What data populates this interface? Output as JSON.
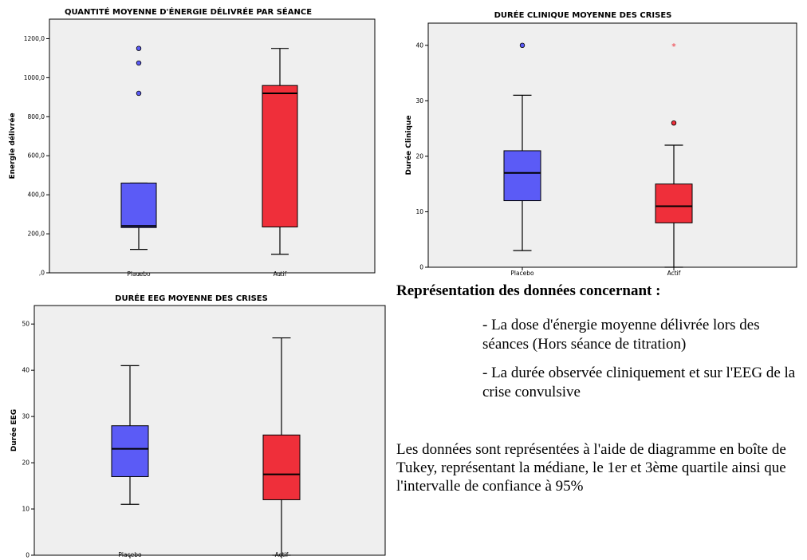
{
  "chart_data": [
    {
      "type": "boxplot",
      "title": "QUANTITÉ MOYENNE D'ÉNERGIE DÉLIVRÉE PAR SÉANCE",
      "ylabel": "Energie délivrée",
      "xlabel": "",
      "ylim": [
        0,
        1300
      ],
      "yticks": [
        0,
        200,
        400,
        600,
        800,
        1000,
        1200
      ],
      "ytick_labels": [
        ",0",
        "200,0",
        "400,0",
        "600,0",
        "800,0",
        "1000,0",
        "1200,0"
      ],
      "categories": [
        "Placebo",
        "Actif"
      ],
      "boxes": [
        {
          "category": "Placebo",
          "whisker_low": 120,
          "q1": 232,
          "median": 240,
          "q3": 460,
          "whisker_high": 460,
          "color": "#5b5bf6",
          "outliers": [
            {
              "value": 920,
              "marker": "circle"
            },
            {
              "value": 1075,
              "marker": "circle"
            },
            {
              "value": 1150,
              "marker": "circle"
            }
          ]
        },
        {
          "category": "Actif",
          "whisker_low": 95,
          "q1": 235,
          "median": 920,
          "q3": 960,
          "whisker_high": 1150,
          "color": "#ef2f3a",
          "outliers": []
        }
      ]
    },
    {
      "type": "boxplot",
      "title": "DURÉE CLINIQUE MOYENNE DES CRISES",
      "ylabel": "Durée Clinique",
      "xlabel": "",
      "ylim": [
        0,
        44
      ],
      "yticks": [
        0,
        10,
        20,
        30,
        40
      ],
      "ytick_labels": [
        "0",
        "10",
        "20",
        "30",
        "40"
      ],
      "categories": [
        "Placebo",
        "Actif"
      ],
      "boxes": [
        {
          "category": "Placebo",
          "whisker_low": 3,
          "q1": 12,
          "median": 17,
          "q3": 21,
          "whisker_high": 31,
          "color": "#5b5bf6",
          "outliers": [
            {
              "value": 40,
              "marker": "circle"
            }
          ]
        },
        {
          "category": "Actif",
          "whisker_low": 0,
          "q1": 8,
          "median": 11,
          "q3": 15,
          "whisker_high": 22,
          "color": "#ef2f3a",
          "outliers": [
            {
              "value": 26,
              "marker": "circle"
            },
            {
              "value": 40,
              "marker": "star"
            }
          ]
        }
      ]
    },
    {
      "type": "boxplot",
      "title": "DURÉE EEG MOYENNE DES CRISES",
      "ylabel": "Durée EEG",
      "xlabel": "",
      "ylim": [
        0,
        54
      ],
      "yticks": [
        0,
        10,
        20,
        30,
        40,
        50
      ],
      "ytick_labels": [
        "0",
        "10",
        "20",
        "30",
        "40",
        "50"
      ],
      "categories": [
        "Placebo",
        "Actif"
      ],
      "boxes": [
        {
          "category": "Placebo",
          "whisker_low": 11,
          "q1": 17,
          "median": 23,
          "q3": 28,
          "whisker_high": 41,
          "color": "#5b5bf6",
          "outliers": []
        },
        {
          "category": "Actif",
          "whisker_low": 0,
          "q1": 12,
          "median": 17.5,
          "q3": 26,
          "whisker_high": 47,
          "color": "#ef2f3a",
          "outliers": []
        }
      ]
    }
  ],
  "side_text": {
    "heading": "Représentation des données concernant :",
    "bullet_1": "- La dose d'énergie moyenne délivrée lors des séances (Hors séance de titration)",
    "bullet_2": "- La durée observée cliniquement et sur l'EEG de la crise convulsive",
    "paragraph": "Les données sont représentées à l'aide de diagramme en boîte de Tukey, représentant la médiane, le 1er et 3ème quartile ainsi que l'intervalle de confiance à 95%"
  },
  "colors": {
    "plot_background": "#efefef",
    "placebo": "#5b5bf6",
    "actif": "#ef2f3a",
    "star_outlier": "#ef2f3a"
  }
}
